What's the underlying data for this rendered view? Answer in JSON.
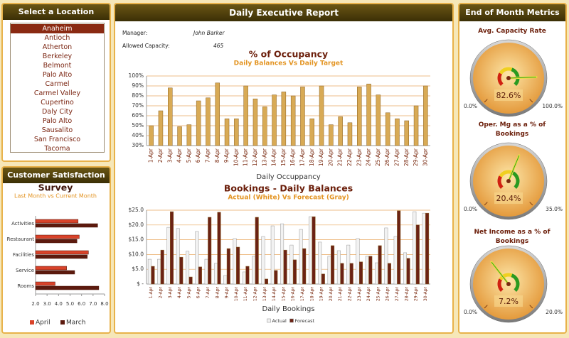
{
  "location_panel": {
    "title": "Select a Location",
    "selected": "Anaheim",
    "locations": [
      "Anaheim",
      "Antioch",
      "Atherton",
      "Berkeley",
      "Belmont",
      "Palo Alto",
      "Carmel",
      "Carmel Valley",
      "Cupertino",
      "Daly City",
      "Palo Alto",
      "Sausalito",
      "San Francisco",
      "Tacoma"
    ]
  },
  "satisfaction_panel": {
    "title": "Customer Satisfaction"
  },
  "report": {
    "title": "Daily Executive Report",
    "fields": [
      {
        "label": "Manager:",
        "value": "John Barker"
      },
      {
        "label": "Allowed Capacity:",
        "value": 465
      }
    ]
  },
  "metrics_panel": {
    "title": "End of Month Metrics"
  },
  "chart_data": [
    {
      "type": "bar",
      "orientation": "horizontal",
      "title": "Survey",
      "subtitle": "Last Month vs Current Month",
      "categories": [
        "Activities",
        "Restaurant",
        "Facilities",
        "Service",
        "Rooms"
      ],
      "series": [
        {
          "name": "April",
          "color": "#d9432a",
          "values": [
            5.7,
            5.8,
            6.6,
            4.7,
            3.7
          ]
        },
        {
          "name": "March",
          "color": "#5c1a0e",
          "values": [
            7.4,
            5.6,
            6.5,
            5.4,
            7.5
          ]
        }
      ],
      "xlim": [
        2,
        8
      ],
      "xticks": [
        {
          "value": 2,
          "label": "2.0"
        },
        {
          "value": 3,
          "label": "3.0"
        },
        {
          "value": 4,
          "label": "4.0"
        },
        {
          "value": 5,
          "label": "5.0"
        },
        {
          "value": 6,
          "label": "6.0"
        },
        {
          "value": 7,
          "label": "7.0"
        },
        {
          "value": 8,
          "label": "8.0"
        }
      ],
      "legend": "bottom"
    },
    {
      "type": "bar",
      "title": "% of Occupancy",
      "subtitle": "Daily Balances Vs Daily Target",
      "xlabel": "Daily Occuppancy",
      "categories": [
        "1-Apr",
        "2-Apr",
        "3-Apr",
        "4-Apr",
        "5-Apr",
        "6-Apr",
        "7-Apr",
        "8-Apr",
        "9-Apr",
        "10-Apr",
        "11-Apr",
        "12-Apr",
        "13-Apr",
        "14-Apr",
        "15-Apr",
        "16-Apr",
        "17-Apr",
        "18-Apr",
        "19-Apr",
        "20-Apr",
        "21-Apr",
        "22-Apr",
        "23-Apr",
        "24-Apr",
        "25-Apr",
        "26-Apr",
        "27-Apr",
        "28-Apr",
        "29-Apr",
        "30-Apr"
      ],
      "values": [
        50,
        65,
        88,
        49,
        51,
        75,
        78,
        93,
        57,
        57,
        90,
        77,
        69,
        81,
        84,
        80,
        89,
        57,
        90,
        51,
        59,
        53,
        89,
        92,
        81,
        63,
        57,
        55,
        70,
        90
      ],
      "color": "#d8aa55",
      "ylim": [
        30,
        100
      ],
      "yticks": [
        {
          "value": 30,
          "label": "30%"
        },
        {
          "value": 40,
          "label": "40%"
        },
        {
          "value": 50,
          "label": "50%"
        },
        {
          "value": 60,
          "label": "60%"
        },
        {
          "value": 70,
          "label": "70%"
        },
        {
          "value": 80,
          "label": "80%"
        },
        {
          "value": 90,
          "label": "90%"
        },
        {
          "value": 100,
          "label": "100%"
        }
      ],
      "grid": true
    },
    {
      "type": "bar",
      "title": "Bookings - Daily Balances",
      "subtitle": "Actual (White) Vs Forecast (Gray)",
      "xlabel": "Daily Bookings",
      "categories": [
        "1-Apr",
        "2-Apr",
        "3-Apr",
        "4-Apr",
        "5-Apr",
        "6-Apr",
        "7-Apr",
        "8-Apr",
        "9-Apr",
        "10-Apr",
        "11-Apr",
        "12-Apr",
        "13-Apr",
        "14-Apr",
        "15-Apr",
        "16-Apr",
        "17-Apr",
        "18-Apr",
        "19-Apr",
        "20-Apr",
        "21-Apr",
        "22-Apr",
        "23-Apr",
        "24-Apr",
        "25-Apr",
        "26-Apr",
        "27-Apr",
        "28-Apr",
        "29-Apr",
        "30-Apr"
      ],
      "series": [
        {
          "name": "Actual",
          "color": "#f2f2f2",
          "values": [
            8.4,
            8.4,
            19.2,
            18.8,
            11.1,
            17.8,
            8.4,
            7.0,
            2.9,
            15.4,
            4.1,
            9.4,
            16.1,
            19.7,
            20.4,
            13.2,
            18.5,
            22.8,
            14.2,
            9.4,
            11.3,
            13.2,
            15.4,
            9.4,
            7.2,
            19.0,
            16.1,
            10.6,
            24.5,
            24.0
          ]
        },
        {
          "name": "Forecast",
          "color": "#6b2214",
          "values": [
            6.0,
            11.5,
            24.5,
            9.1,
            2.4,
            5.8,
            22.6,
            24.3,
            12.0,
            12.5,
            6.0,
            22.6,
            1.7,
            4.6,
            11.5,
            8.2,
            12.0,
            22.8,
            3.4,
            13.0,
            7.0,
            7.0,
            7.5,
            9.4,
            13.0,
            7.0,
            24.8,
            8.7,
            20.0,
            24.0
          ]
        }
      ],
      "ylim": [
        0,
        25
      ],
      "yticks": [
        {
          "value": 0,
          "label": "$ -"
        },
        {
          "value": 5,
          "label": "$5.0"
        },
        {
          "value": 10,
          "label": "$10.0"
        },
        {
          "value": 15,
          "label": "$15.0"
        },
        {
          "value": 20,
          "label": "$20.0"
        },
        {
          "value": 25,
          "label": "$25.0"
        }
      ],
      "grid": true,
      "legend": "bottom"
    },
    {
      "type": "gauge",
      "title": "Avg. Capacity Rate",
      "value": 82.6,
      "value_label": "82.6%",
      "ylim": [
        0,
        100
      ],
      "yticks": [
        {
          "value": 0,
          "label": "0.0%"
        },
        {
          "value": 100,
          "label": "100.0%"
        }
      ]
    },
    {
      "type": "gauge",
      "title": "Oper. Mg as a % of Bookings",
      "value": 20.4,
      "value_label": "20.4%",
      "ylim": [
        0,
        35
      ],
      "yticks": [
        {
          "value": 0,
          "label": "0.0%"
        },
        {
          "value": 35,
          "label": "35.0%"
        }
      ]
    },
    {
      "type": "gauge",
      "title": "Net Income as a % of Bookings",
      "value": 7.2,
      "value_label": "7.2%",
      "ylim": [
        0,
        20
      ],
      "yticks": [
        {
          "value": 0,
          "label": "0.0%"
        },
        {
          "value": 20,
          "label": "20.0%"
        }
      ]
    }
  ]
}
